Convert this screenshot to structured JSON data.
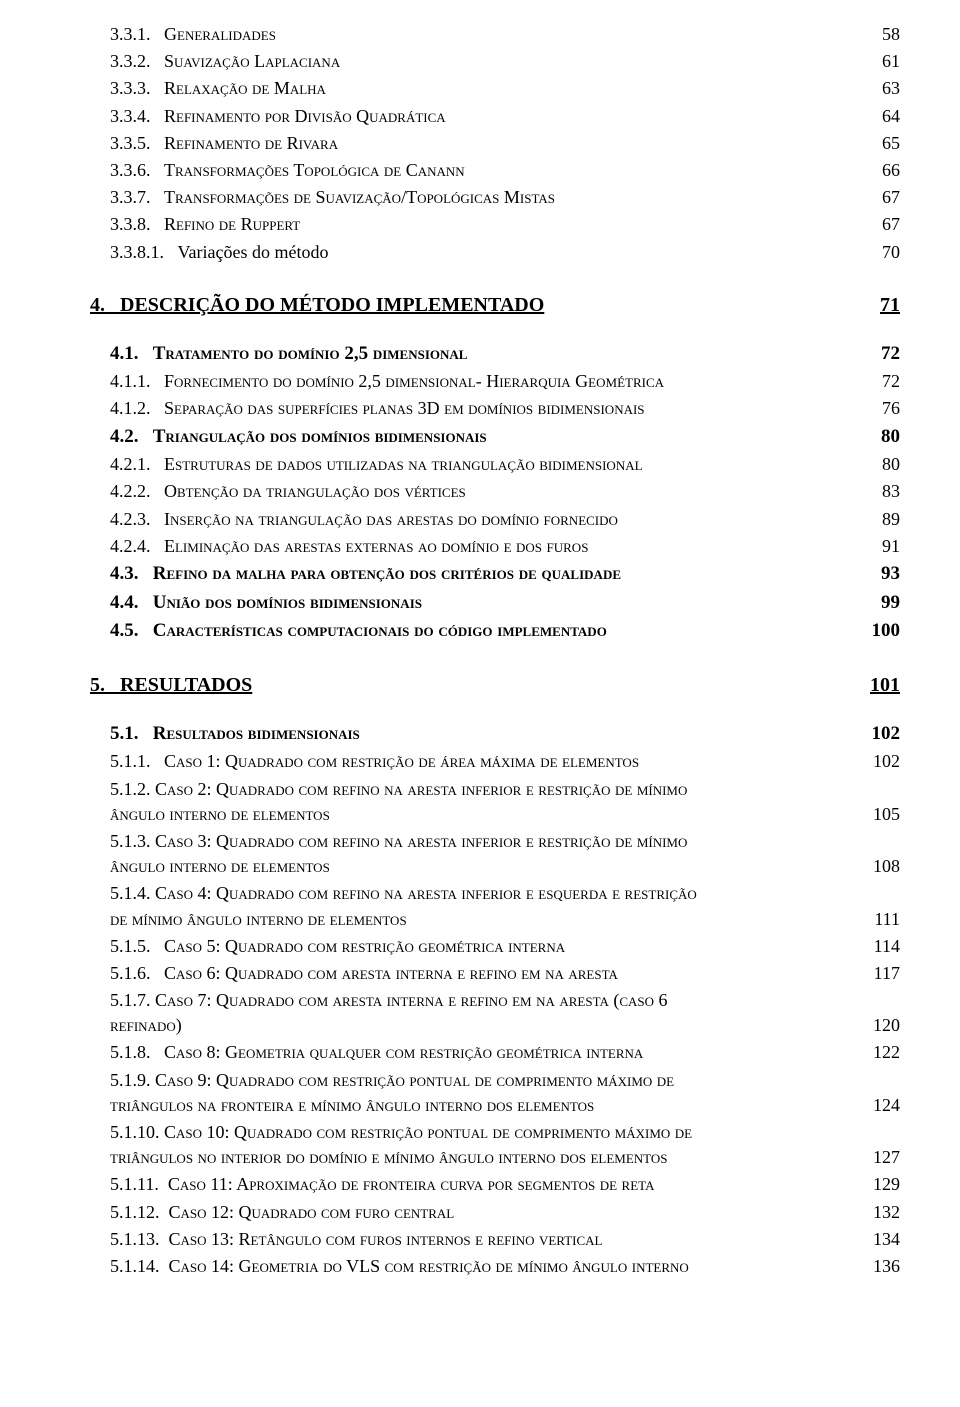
{
  "text_color": "#000000",
  "background_color": "#ffffff",
  "font_family": "Times New Roman",
  "fontsize_level0": 20,
  "fontsize_level1": 19,
  "fontsize_level2": 18,
  "e331_num": "3.3.1.   ",
  "e331_label": "Generalidades",
  "e331_page": "58",
  "e332_num": "3.3.2.   ",
  "e332_label": "Suavização Laplaciana",
  "e332_page": "61",
  "e333_num": "3.3.3.   ",
  "e333_label": "Relaxação de Malha",
  "e333_page": "63",
  "e334_num": "3.3.4.   ",
  "e334_label": "Refinamento por Divisão Quadrática",
  "e334_page": "64",
  "e335_num": "3.3.5.   ",
  "e335_label": "Refinamento de Rivara",
  "e335_page": "65",
  "e336_num": "3.3.6.   ",
  "e336_label": "Transformações Topológica de Canann",
  "e336_page": "66",
  "e337_num": "3.3.7.   ",
  "e337_label": "Transformações de Suavização/Topológicas Mistas",
  "e337_page": "67",
  "e338_num": "3.3.8.   ",
  "e338_label": "Refino de Ruppert",
  "e338_page": "67",
  "e3381_num": "3.3.8.1.   ",
  "e3381_label": "Variações do método",
  "e3381_page": "70",
  "e4_num": "4.   ",
  "e4_label": "DESCRIÇÃO DO MÉTODO IMPLEMENTADO",
  "e4_page": "71",
  "e41_num": "4.1.   ",
  "e41_label": "Tratamento do domínio 2,5 dimensional",
  "e41_page": "72",
  "e411_num": "4.1.1.   ",
  "e411_label": "Fornecimento do domínio 2,5 dimensional- Hierarquia Geométrica",
  "e411_page": "72",
  "e412_num": "4.1.2.   ",
  "e412_label": "Separação das superfícies planas 3D em domínios bidimensionais",
  "e412_page": "76",
  "e42_num": "4.2.   ",
  "e42_label": "Triangulação dos domínios bidimensionais",
  "e42_page": "80",
  "e421_num": "4.2.1.   ",
  "e421_label": "Estruturas de dados utilizadas na triangulação bidimensional",
  "e421_page": "80",
  "e422_num": "4.2.2.   ",
  "e422_label": "Obtenção da triangulação dos vértices",
  "e422_page": "83",
  "e423_num": "4.2.3.   ",
  "e423_label": "Inserção na triangulação das arestas do domínio fornecido",
  "e423_page": "89",
  "e424_num": "4.2.4.   ",
  "e424_label": "Eliminação das arestas externas ao domínio e dos furos",
  "e424_page": "91",
  "e43_num": "4.3.   ",
  "e43_label": "Refino da malha para obtenção dos critérios de qualidade",
  "e43_page": "93",
  "e44_num": "4.4.   ",
  "e44_label": "União dos domínios bidimensionais",
  "e44_page": "99",
  "e45_num": "4.5.   ",
  "e45_label": "Características computacionais do código implementado",
  "e45_page": "100",
  "e5_num": "5.   ",
  "e5_label": "RESULTADOS",
  "e5_page": "101",
  "e51_num": "5.1.   ",
  "e51_label": "Resultados bidimensionais",
  "e51_page": "102",
  "e511_num": "5.1.1.   ",
  "e511_label": "Caso 1: Quadrado com restrição de área máxima de elementos",
  "e511_page": "102",
  "e512_line1": "5.1.2.   Caso 2: Quadrado com refino na aresta inferior e restrição de mínimo",
  "e512_line2": "ângulo interno de elementos",
  "e512_page": "105",
  "e513_line1": "5.1.3.   Caso 3: Quadrado com refino na aresta inferior e restrição de mínimo",
  "e513_line2": "ângulo interno de elementos",
  "e513_page": "108",
  "e514_line1": "5.1.4.   Caso 4: Quadrado com refino na aresta inferior e esquerda e restrição",
  "e514_line2": "de mínimo ângulo interno de elementos",
  "e514_page": "111",
  "e515_num": "5.1.5.   ",
  "e515_label": "Caso 5: Quadrado com restrição geométrica interna",
  "e515_page": "114",
  "e516_num": "5.1.6.   ",
  "e516_label": "Caso 6: Quadrado com aresta interna e refino em na aresta",
  "e516_page": "117",
  "e517_line1": "5.1.7.   Caso 7: Quadrado com aresta interna e refino em na aresta (caso 6",
  "e517_line2": "refinado)",
  "e517_page": "120",
  "e518_num": "5.1.8.   ",
  "e518_label": "Caso 8: Geometria qualquer com restrição geométrica interna",
  "e518_page": "122",
  "e519_line1": "5.1.9.   Caso 9: Quadrado com restrição pontual de comprimento máximo de",
  "e519_line2": "triângulos na fronteira e mínimo ângulo interno dos elementos",
  "e519_page": "124",
  "e5110_line1": "5.1.10.  Caso 10: Quadrado com restrição pontual de comprimento máximo de",
  "e5110_line2": "triângulos no interior do domínio e mínimo ângulo interno dos elementos",
  "e5110_page": "127",
  "e5111_num": "5.1.11.  ",
  "e5111_label": "Caso 11: Aproximação de fronteira curva por segmentos de reta",
  "e5111_page": "129",
  "e5112_num": "5.1.12.  ",
  "e5112_label": "Caso 12: Quadrado com furo central",
  "e5112_page": "132",
  "e5113_num": "5.1.13.  ",
  "e5113_label": "Caso 13: Retângulo com furos internos e refino vertical",
  "e5113_page": "134",
  "e5114_num": "5.1.14.  ",
  "e5114_label": "Caso 14: Geometria do VLS com restrição de mínimo ângulo interno",
  "e5114_page": "136"
}
